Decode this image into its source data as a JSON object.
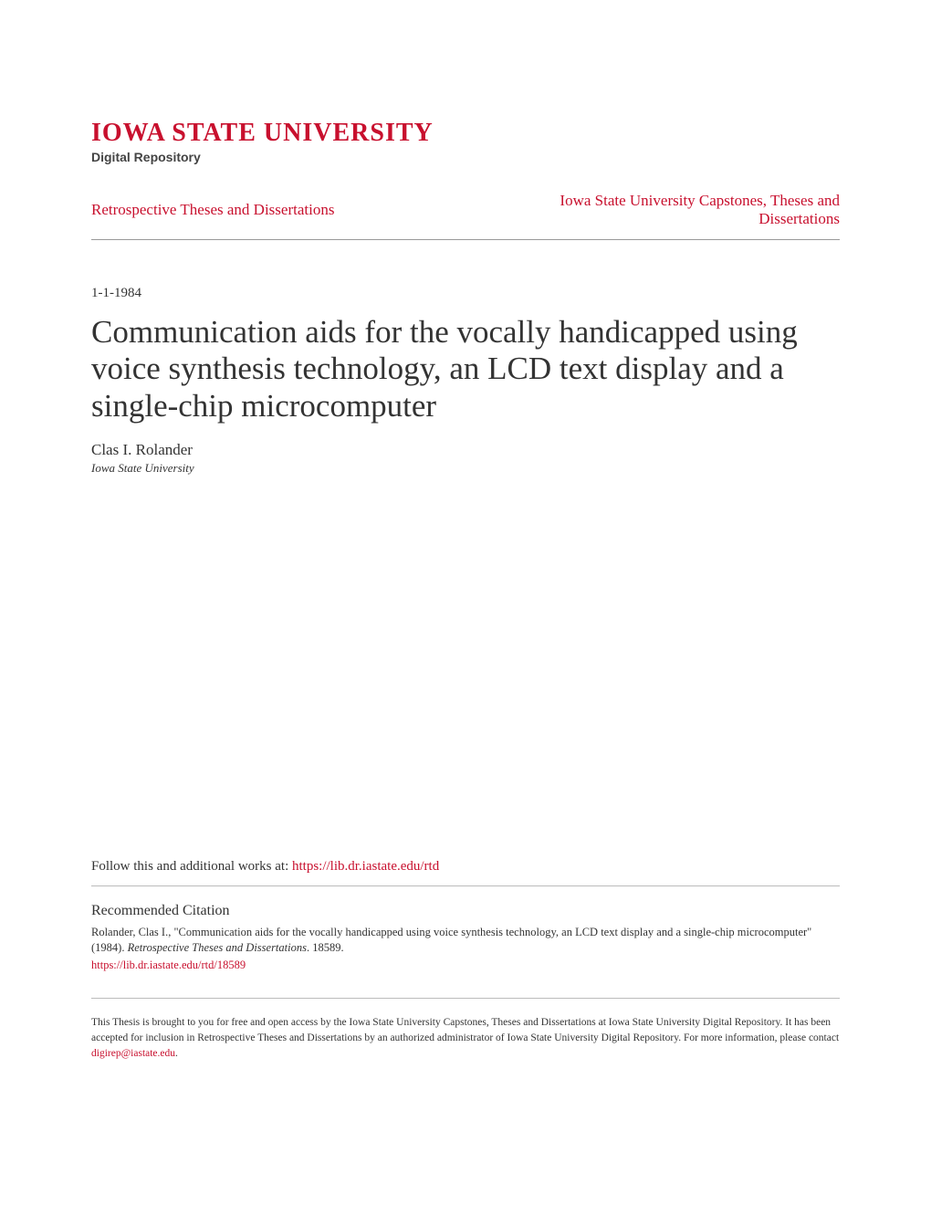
{
  "header": {
    "university_name": "Iowa State University",
    "repository_label": "Digital Repository",
    "colors": {
      "brand_red": "#c8102e",
      "text_dark": "#333333",
      "divider": "#999999",
      "background": "#ffffff"
    }
  },
  "breadcrumb": {
    "left": "Retrospective Theses and Dissertations",
    "right": "Iowa State University Capstones, Theses and Dissertations"
  },
  "paper": {
    "date": "1-1-1984",
    "title": "Communication aids for the vocally handicapped using voice synthesis technology, an LCD text display and a single-chip microcomputer",
    "author": "Clas I. Rolander",
    "affiliation": "Iowa State University"
  },
  "follow": {
    "prefix": "Follow this and additional works at: ",
    "url": "https://lib.dr.iastate.edu/rtd"
  },
  "citation": {
    "heading": "Recommended Citation",
    "text_part1": "Rolander, Clas I., \"Communication aids for the vocally handicapped using voice synthesis technology, an LCD text display and a single-chip microcomputer\" (1984). ",
    "text_italic": "Retrospective Theses and Dissertations",
    "text_part2": ". 18589.",
    "url": "https://lib.dr.iastate.edu/rtd/18589"
  },
  "footer": {
    "text_part1": "This Thesis is brought to you for free and open access by the Iowa State University Capstones, Theses and Dissertations at Iowa State University Digital Repository. It has been accepted for inclusion in Retrospective Theses and Dissertations by an authorized administrator of Iowa State University Digital Repository. For more information, please contact ",
    "email": "digirep@iastate.edu",
    "text_part2": "."
  }
}
